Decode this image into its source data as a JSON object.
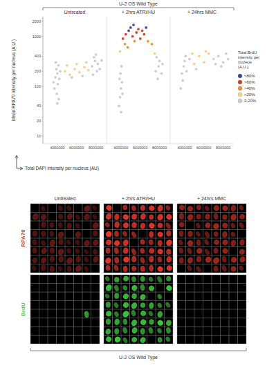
{
  "header": {
    "title": "U-2 OS Wild Type"
  },
  "chart_data": [
    {
      "type": "scatter",
      "title": "Untreated",
      "x_label": "Total DAPI intensity per nucleus (AU)",
      "y_label": "Mean RPA70 intensity per nucleus (A.U.)",
      "log": "y",
      "tick_labels": true,
      "xlim": [
        2500000,
        9100000
      ],
      "xticks": [
        4000000,
        6000000,
        8000000
      ],
      "ylim": [
        7,
        2500
      ],
      "yticks": [
        10,
        20,
        40,
        100,
        200,
        400,
        1000,
        2000
      ],
      "x": [
        3600000,
        3800000,
        4000000,
        4200000,
        3900000,
        4100000,
        3700000,
        4300000,
        3950000,
        4050000,
        3850000,
        4150000,
        4000000,
        4800000,
        5300000,
        5800000,
        6300000,
        6800000,
        7200000,
        5000000,
        6000000,
        5500000,
        6600000,
        7000000,
        7600000,
        7900000,
        8200000,
        8400000,
        7800000,
        8100000,
        8600000,
        8000000,
        7700000
      ],
      "values": [
        120,
        150,
        180,
        140,
        220,
        260,
        90,
        200,
        70,
        110,
        300,
        55,
        45,
        200,
        170,
        220,
        190,
        240,
        210,
        260,
        280,
        150,
        160,
        300,
        250,
        320,
        280,
        220,
        380,
        200,
        330,
        430,
        170
      ],
      "brdu": [
        10,
        8,
        12,
        6,
        15,
        18,
        5,
        10,
        4,
        7,
        16,
        3,
        3,
        22,
        25,
        24,
        28,
        22,
        21,
        30,
        26,
        18,
        19,
        23,
        15,
        12,
        10,
        9,
        14,
        11,
        8,
        13,
        10
      ]
    },
    {
      "type": "scatter",
      "title": "+ 2hrs ATRi/HU",
      "log": "y",
      "tick_labels": "x",
      "xlim": [
        2500000,
        9100000
      ],
      "xticks": [
        4000000,
        6000000,
        8000000
      ],
      "ylim": [
        7,
        2500
      ],
      "x": [
        3800000,
        3900000,
        4000000,
        4100000,
        3950000,
        4050000,
        4000000,
        4150000,
        3850000,
        4200000,
        4500000,
        4800000,
        5200000,
        5600000,
        6000000,
        6400000,
        6800000,
        7200000,
        4400000,
        5000000,
        5400000,
        5800000,
        6200000,
        4700000,
        6600000,
        3900000,
        7500000,
        5300000,
        7600000,
        7900000,
        8200000,
        8000000,
        7800000,
        8300000,
        7700000
      ],
      "values": [
        40,
        60,
        90,
        120,
        180,
        250,
        30,
        70,
        140,
        900,
        1100,
        1300,
        1000,
        1200,
        900,
        1100,
        800,
        700,
        700,
        1500,
        800,
        1400,
        1300,
        600,
        1500,
        500,
        450,
        1700,
        200,
        250,
        180,
        320,
        140,
        280,
        380
      ],
      "brdu": [
        3,
        4,
        5,
        6,
        8,
        10,
        2,
        4,
        7,
        65,
        70,
        85,
        75,
        68,
        62,
        72,
        55,
        45,
        48,
        82,
        58,
        78,
        66,
        42,
        88,
        35,
        30,
        90,
        8,
        10,
        7,
        12,
        6,
        9,
        15
      ]
    },
    {
      "type": "scatter",
      "title": "+ 24hrs MMC",
      "log": "y",
      "tick_labels": "x",
      "xlim": [
        2500000,
        9100000
      ],
      "xticks": [
        4000000,
        6000000,
        8000000
      ],
      "ylim": [
        7,
        2500
      ],
      "x": [
        3700000,
        3900000,
        4000000,
        4100000,
        3800000,
        4200000,
        3600000,
        4500000,
        5000000,
        5500000,
        6000000,
        6500000,
        7000000,
        7500000,
        8000000,
        8300000,
        7800000,
        8500000,
        6200000,
        5200000,
        4800000,
        7200000
      ],
      "values": [
        180,
        250,
        320,
        400,
        130,
        200,
        90,
        350,
        280,
        400,
        300,
        450,
        350,
        400,
        300,
        450,
        250,
        350,
        500,
        220,
        450,
        280
      ],
      "brdu": [
        8,
        12,
        14,
        16,
        6,
        10,
        5,
        20,
        22,
        24,
        21,
        25,
        22,
        18,
        15,
        14,
        12,
        11,
        23,
        18,
        26,
        16
      ]
    }
  ],
  "color_legend": {
    "title": "Total BrdU intensity per nucleus (A.U.)",
    "legend": "right",
    "items": [
      {
        "label": ">80%",
        "min": 80,
        "color": "#3a3d9a"
      },
      {
        "label": ">60%",
        "min": 60,
        "color": "#d8321f"
      },
      {
        "label": ">40%",
        "min": 40,
        "color": "#f08a24"
      },
      {
        "label": ">20%",
        "min": 20,
        "color": "#f3cf8a"
      },
      {
        "label": "0-20%",
        "min": 0,
        "color": "#c6c9d6"
      }
    ]
  },
  "images": {
    "column_titles": [
      "Untreated",
      "+ 2hrs ATRi/HU",
      "+ 24hrs MMC"
    ],
    "row_labels": [
      "RPA70",
      "BrdU"
    ],
    "footer": "U-2 OS Wild Type"
  }
}
